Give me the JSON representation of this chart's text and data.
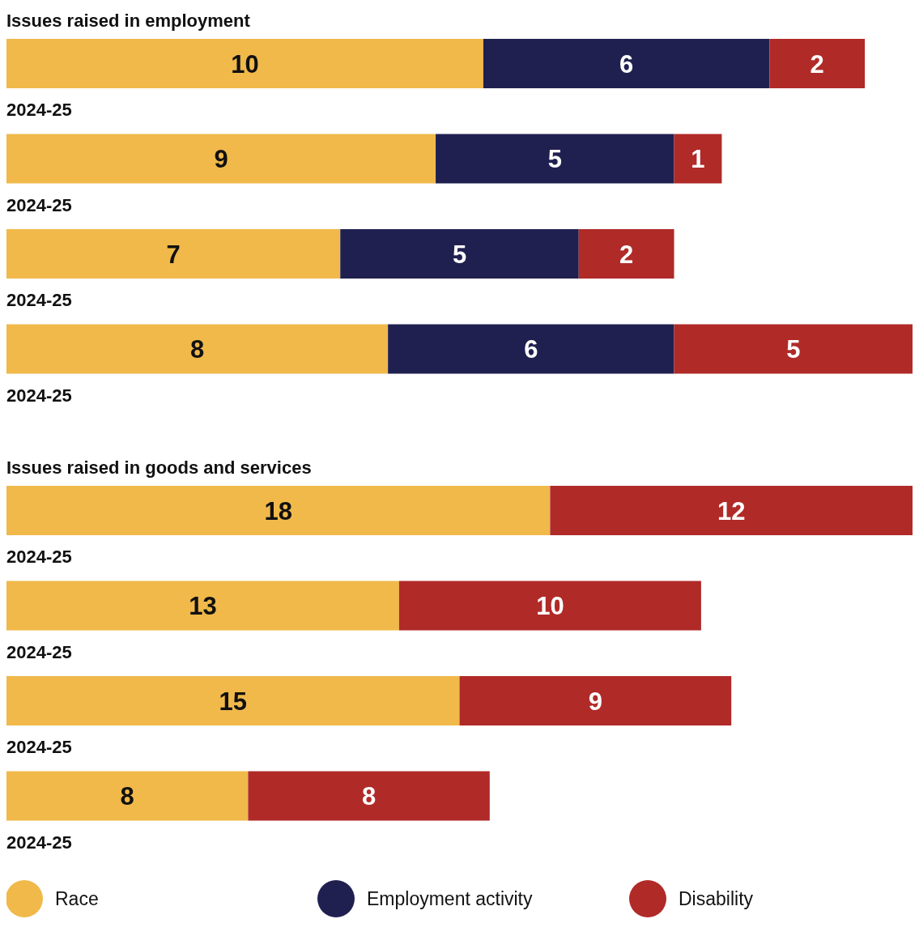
{
  "chart_data": [
    {
      "type": "bar",
      "orientation": "horizontal",
      "stacked": true,
      "title": "Issues raised in employment",
      "categories": [
        "2024-25",
        "2024-25",
        "2024-25",
        "2024-25"
      ],
      "data_labels": true,
      "legend": false,
      "series": [
        {
          "color": "#f0b94a",
          "values": [
            10,
            9,
            7,
            8
          ]
        },
        {
          "color": "#202050",
          "values": [
            6,
            5,
            5,
            6
          ]
        },
        {
          "color": "#b02a28",
          "values": [
            2,
            1,
            2,
            5
          ]
        }
      ]
    },
    {
      "type": "bar",
      "orientation": "horizontal",
      "stacked": true,
      "title": "Issues raised in goods and services",
      "categories": [
        "2024-25",
        "2024-25",
        "2024-25",
        "2024-25"
      ],
      "data_labels": true,
      "legend": "bottom",
      "series": [
        {
          "name": "Race",
          "color": "#f0b94a",
          "values": [
            18,
            13,
            15,
            8
          ]
        },
        {
          "name": "Employment activity",
          "color": "#202050",
          "values": [
            null,
            null,
            null,
            null
          ]
        },
        {
          "name": "Disability",
          "color": "#b02a28",
          "values": [
            12,
            10,
            9,
            8
          ]
        }
      ]
    }
  ]
}
